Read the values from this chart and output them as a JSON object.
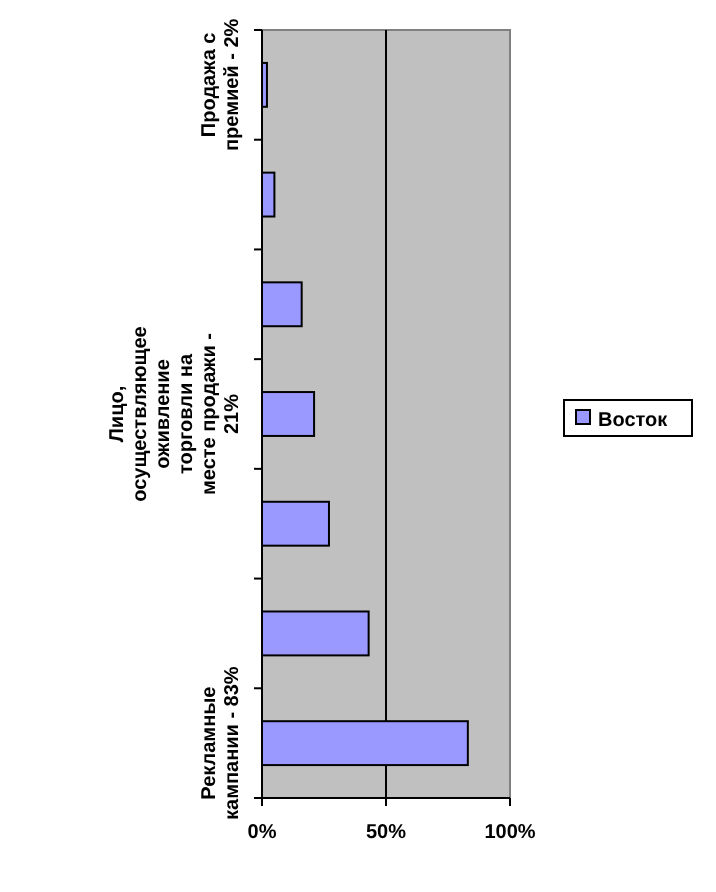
{
  "chart_data": {
    "type": "bar",
    "orientation": "horizontal",
    "categories": [
      "Продажа с премией - 2%",
      null,
      null,
      "Лицо, осуществляющее оживление торговли на месте продажи - 21%",
      null,
      null,
      "Рекламные кампании - 83%"
    ],
    "series": [
      {
        "name": "Восток",
        "color": "#9999ff",
        "values": [
          2,
          5,
          16,
          21,
          27,
          43,
          83
        ]
      }
    ],
    "xlim": [
      0,
      100
    ],
    "xticks": [
      {
        "value": 0,
        "label": "0%"
      },
      {
        "value": 50,
        "label": "50%"
      },
      {
        "value": 100,
        "label": "100%"
      }
    ],
    "grid": "x",
    "legend": "right"
  }
}
